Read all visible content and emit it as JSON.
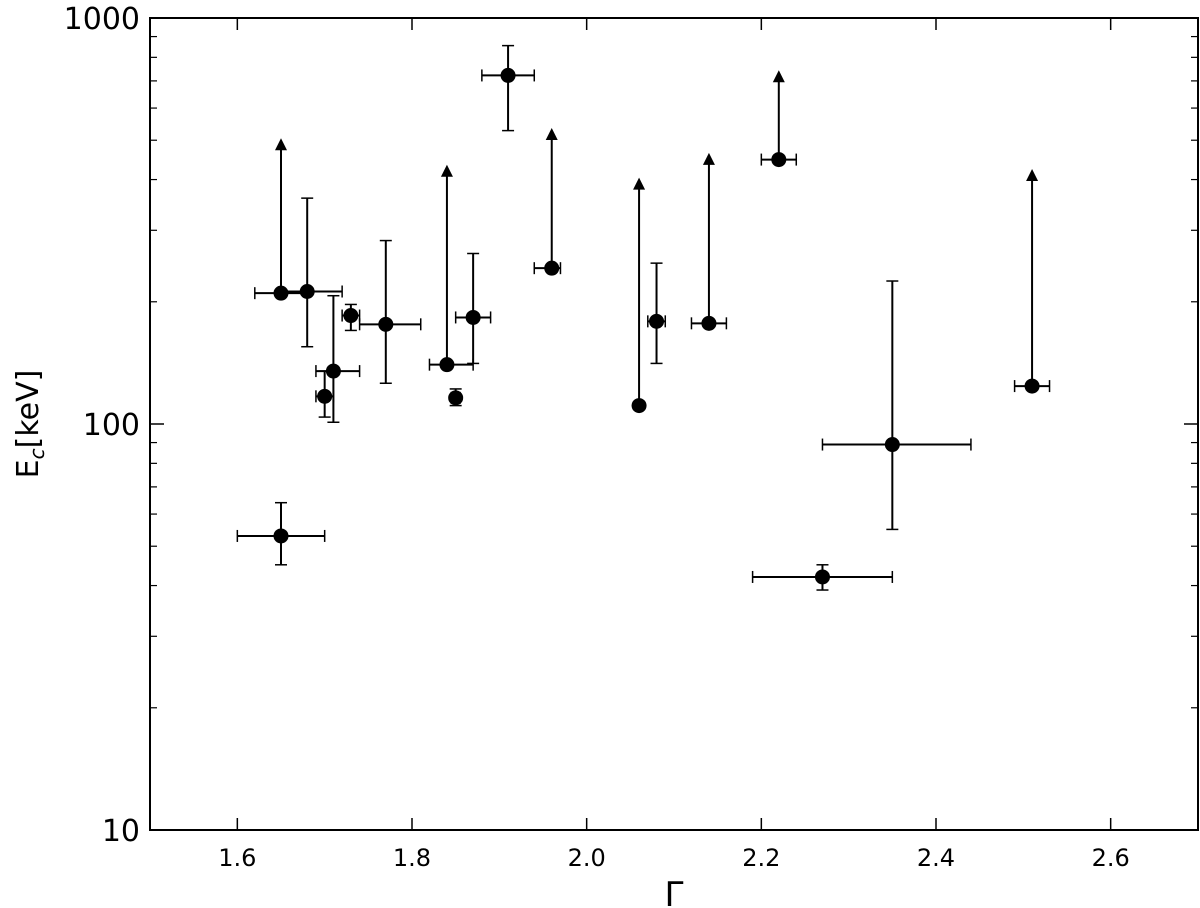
{
  "chart_data": {
    "type": "scatter",
    "xlabel": "Γ",
    "ylabel_main": "E",
    "ylabel_sub": "c",
    "ylabel_rest": "[keV]",
    "xlim": [
      1.5,
      2.7
    ],
    "ylim": [
      10,
      1000
    ],
    "yscale": "log",
    "grid": false,
    "x_ticks": [
      1.6,
      1.8,
      2.0,
      2.2,
      2.4,
      2.6
    ],
    "x_tick_labels": [
      "1.6",
      "1.8",
      "2.0",
      "2.2",
      "2.4",
      "2.6"
    ],
    "y_ticks": [
      10,
      100,
      1000
    ],
    "y_tick_labels": [
      "10",
      "100",
      "1000"
    ],
    "marker_color": "#000000",
    "points": [
      {
        "x": 1.65,
        "y": 53,
        "xerr": [
          1.6,
          1.7
        ],
        "yerr": [
          45,
          64
        ]
      },
      {
        "x": 1.65,
        "y": 210,
        "xerr": [
          1.62,
          1.68
        ],
        "lower_limit": true,
        "arrow_to": 500
      },
      {
        "x": 1.68,
        "y": 212,
        "xerr": [
          1.65,
          1.72
        ],
        "yerr": [
          155,
          360
        ]
      },
      {
        "x": 1.7,
        "y": 117,
        "xerr": [
          1.69,
          1.71
        ],
        "yerr": [
          104,
          135
        ]
      },
      {
        "x": 1.71,
        "y": 135,
        "xerr": [
          1.69,
          1.74
        ],
        "yerr": [
          101,
          207
        ]
      },
      {
        "x": 1.73,
        "y": 185,
        "xerr": [
          1.72,
          1.74
        ],
        "yerr": [
          170,
          197
        ]
      },
      {
        "x": 1.77,
        "y": 176,
        "xerr": [
          1.74,
          1.81
        ],
        "yerr": [
          126,
          283
        ]
      },
      {
        "x": 1.84,
        "y": 140,
        "xerr": [
          1.82,
          1.87
        ],
        "lower_limit": true,
        "arrow_to": 430
      },
      {
        "x": 1.85,
        "y": 116,
        "xerr": [
          1.845,
          1.855
        ],
        "yerr": [
          111,
          122
        ]
      },
      {
        "x": 1.87,
        "y": 183,
        "xerr": [
          1.85,
          1.89
        ],
        "yerr": [
          141,
          263
        ]
      },
      {
        "x": 1.91,
        "y": 722,
        "xerr": [
          1.88,
          1.94
        ],
        "yerr": [
          528,
          855
        ]
      },
      {
        "x": 1.96,
        "y": 242,
        "xerr": [
          1.94,
          1.97
        ],
        "lower_limit": true,
        "arrow_to": 530
      },
      {
        "x": 2.06,
        "y": 111,
        "lower_limit": true,
        "arrow_to": 400
      },
      {
        "x": 2.08,
        "y": 179,
        "xerr": [
          2.07,
          2.09
        ],
        "yerr": [
          141,
          249
        ]
      },
      {
        "x": 2.14,
        "y": 177,
        "xerr": [
          2.12,
          2.16
        ],
        "lower_limit": true,
        "arrow_to": 460
      },
      {
        "x": 2.22,
        "y": 448,
        "xerr": [
          2.2,
          2.24
        ],
        "lower_limit": true,
        "arrow_to": 735
      },
      {
        "x": 2.27,
        "y": 42,
        "xerr": [
          2.19,
          2.35
        ],
        "yerr": [
          39,
          45
        ]
      },
      {
        "x": 2.35,
        "y": 89,
        "xerr": [
          2.27,
          2.44
        ],
        "yerr": [
          55,
          225
        ]
      },
      {
        "x": 2.51,
        "y": 124,
        "xerr": [
          2.49,
          2.53
        ],
        "lower_limit": true,
        "arrow_to": 420
      }
    ]
  }
}
